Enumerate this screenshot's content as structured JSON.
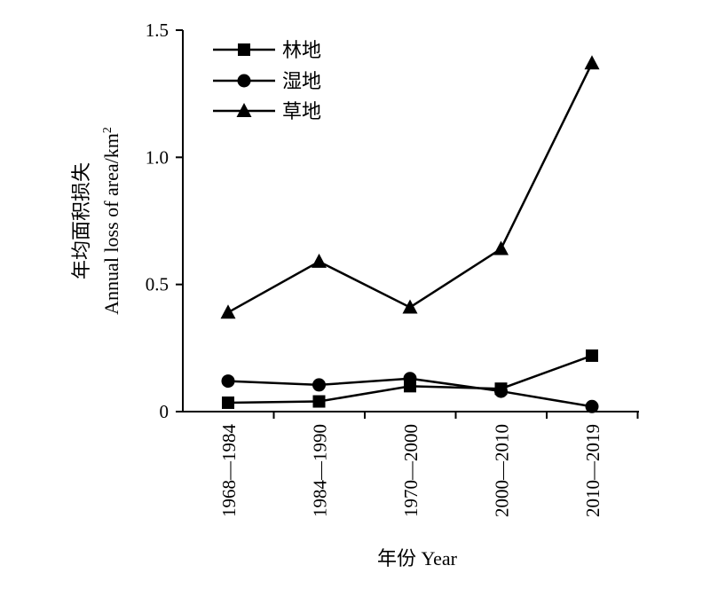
{
  "chart_data": {
    "type": "line",
    "categories": [
      "1968—1984",
      "1984—1990",
      "1970—2000",
      "2000—2010",
      "2010—2019"
    ],
    "series": [
      {
        "name": "林地",
        "marker": "square",
        "values": [
          0.035,
          0.04,
          0.1,
          0.09,
          0.22
        ]
      },
      {
        "name": "湿地",
        "marker": "circle",
        "values": [
          0.12,
          0.105,
          0.13,
          0.08,
          0.02
        ]
      },
      {
        "name": "草地",
        "marker": "triangle",
        "values": [
          0.39,
          0.59,
          0.41,
          0.64,
          1.37
        ]
      }
    ],
    "yticks": [
      "0",
      "0.5",
      "1.0",
      "1.5"
    ],
    "ylim": [
      0,
      1.5
    ],
    "ylabel_line1": "年均面积损失",
    "ylabel_line2": "Annual loss of area/km",
    "ylabel_sup": "2",
    "xlabel": "年份 Year",
    "legend_position": "top-left",
    "grid": false,
    "line_color": "#000000"
  }
}
